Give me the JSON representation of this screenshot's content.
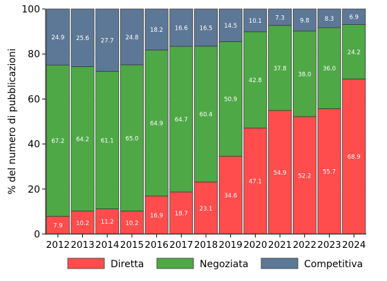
{
  "chart_data": {
    "type": "bar",
    "stacked": true,
    "title": "",
    "xlabel": "",
    "ylabel": "% del numero di pubblicazioni",
    "ylim": [
      0,
      100
    ],
    "yticks": [
      "0",
      "20",
      "40",
      "60",
      "80",
      "100"
    ],
    "grid": true,
    "legend_position": "bottom",
    "categories": [
      "2012",
      "2013",
      "2014",
      "2015",
      "2016",
      "2017",
      "2018",
      "2019",
      "2020",
      "2021",
      "2022",
      "2023",
      "2024"
    ],
    "series": [
      {
        "name": "Diretta",
        "color": "#ff4c4c",
        "values": [
          7.9,
          10.2,
          11.2,
          10.2,
          16.9,
          18.7,
          23.1,
          34.6,
          47.1,
          54.9,
          52.2,
          55.7,
          68.9
        ]
      },
      {
        "name": "Negoziata",
        "color": "#4ea846",
        "values": [
          67.2,
          64.2,
          61.1,
          65.0,
          64.9,
          64.7,
          60.4,
          50.9,
          42.8,
          37.8,
          38.0,
          36.0,
          24.2
        ]
      },
      {
        "name": "Competitiva",
        "color": "#5d7896",
        "values": [
          24.9,
          25.6,
          27.7,
          24.8,
          18.2,
          16.6,
          16.5,
          14.5,
          10.1,
          7.3,
          9.8,
          8.3,
          6.9
        ]
      }
    ]
  }
}
